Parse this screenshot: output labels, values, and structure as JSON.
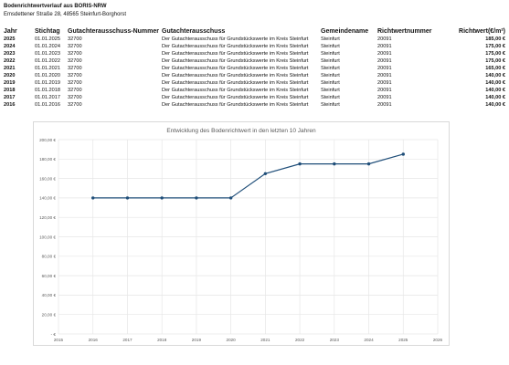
{
  "document": {
    "title": "Bodenrichtwertverlauf aus BORIS-NRW",
    "address": "Emsdettener Straße 28, 48565 Steinfurt-Borghorst"
  },
  "table": {
    "headers": [
      "Jahr",
      "Stichtag",
      "Gutachterausschuss-Nummer",
      "Gutachterausschuss",
      "Gemeindename",
      "Richtwertnummer",
      "Richtwert(€/m²)"
    ],
    "rows": [
      [
        "2025",
        "01.01.2025",
        "32700",
        "Der Gutachterausschuss für Grundstückswerte im Kreis Steinfurt",
        "Steinfurt",
        "20091",
        "185,00 €"
      ],
      [
        "2024",
        "01.01.2024",
        "32700",
        "Der Gutachterausschuss für Grundstückswerte im Kreis Steinfurt",
        "Steinfurt",
        "20091",
        "175,00 €"
      ],
      [
        "2023",
        "01.01.2023",
        "32700",
        "Der Gutachterausschuss für Grundstückswerte im Kreis Steinfurt",
        "Steinfurt",
        "20091",
        "175,00 €"
      ],
      [
        "2022",
        "01.01.2022",
        "32700",
        "Der Gutachterausschuss für Grundstückswerte im Kreis Steinfurt",
        "Steinfurt",
        "20091",
        "175,00 €"
      ],
      [
        "2021",
        "01.01.2021",
        "32700",
        "Der Gutachterausschuss für Grundstückswerte im Kreis Steinfurt",
        "Steinfurt",
        "20091",
        "165,00 €"
      ],
      [
        "2020",
        "01.01.2020",
        "32700",
        "Der Gutachterausschuss für Grundstückswerte im Kreis Steinfurt",
        "Steinfurt",
        "20091",
        "140,00 €"
      ],
      [
        "2019",
        "01.01.2019",
        "32700",
        "Der Gutachterausschuss für Grundstückswerte im Kreis Steinfurt",
        "Steinfurt",
        "20091",
        "140,00 €"
      ],
      [
        "2018",
        "01.01.2018",
        "32700",
        "Der Gutachterausschuss für Grundstückswerte im Kreis Steinfurt",
        "Steinfurt",
        "20091",
        "140,00 €"
      ],
      [
        "2017",
        "01.01.2017",
        "32700",
        "Der Gutachterausschuss für Grundstückswerte im Kreis Steinfurt",
        "Steinfurt",
        "20091",
        "140,00 €"
      ],
      [
        "2016",
        "01.01.2016",
        "32700",
        "Der Gutachterausschuss für Grundstückswerte im Kreis Steinfurt",
        "Steinfurt",
        "20091",
        "140,00 €"
      ]
    ]
  },
  "chart_data": {
    "type": "line",
    "title": "Entwicklung des Bodenrichtwert in den letzten 10 Jahren",
    "xlabel": "",
    "ylabel": "",
    "x": [
      2016,
      2017,
      2018,
      2019,
      2020,
      2021,
      2022,
      2023,
      2024,
      2025
    ],
    "values": [
      140,
      140,
      140,
      140,
      140,
      165,
      175,
      175,
      175,
      185
    ],
    "xlim": [
      2015,
      2026
    ],
    "ylim": [
      0,
      200
    ],
    "x_ticks": [
      "2015",
      "2016",
      "2017",
      "2018",
      "2019",
      "2020",
      "2021",
      "2022",
      "2023",
      "2024",
      "2025",
      "2026"
    ],
    "y_ticks": [
      "- €",
      "20,00 €",
      "40,00 €",
      "60,00 €",
      "80,00 €",
      "100,00 €",
      "120,00 €",
      "140,00 €",
      "160,00 €",
      "180,00 €",
      "200,00 €"
    ],
    "grid": true,
    "markers": true,
    "line_color": "#1f4e79",
    "grid_color": "#e6e6e6",
    "axis_text_color": "#595959"
  }
}
